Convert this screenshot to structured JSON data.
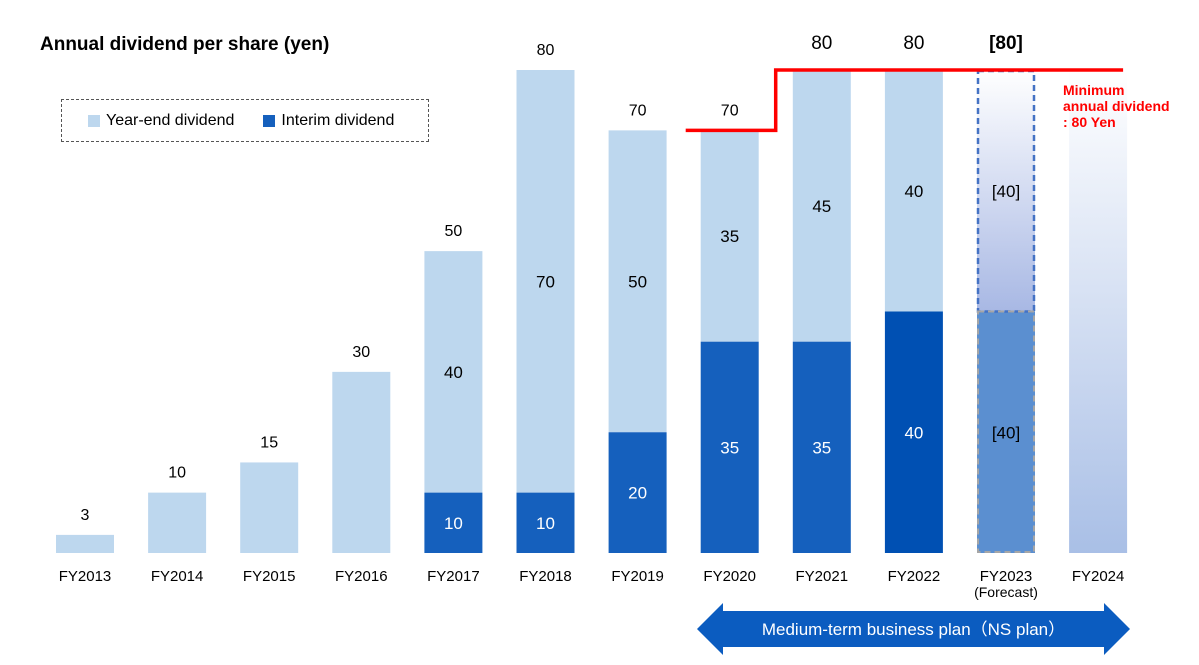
{
  "title": "Annual dividend per share (yen)",
  "legend": {
    "year_end": "Year-end dividend",
    "interim": "Interim dividend"
  },
  "colors": {
    "year_end": "#bdd7ee",
    "interim": "#1560bd",
    "interim_dark": "#0050b3",
    "forecast_interim": "#5b8fd0",
    "minimum_line": "#ff0000",
    "plan_arrow": "#0b5cc0"
  },
  "minimum_note": "Minimum annual dividend : 80 Yen",
  "plan_label": "Medium-term business plan（NS plan）",
  "chart_data": {
    "type": "bar",
    "stacked": true,
    "categories": [
      "FY2013",
      "FY2014",
      "FY2015",
      "FY2016",
      "FY2017",
      "FY2018",
      "FY2019",
      "FY2020",
      "FY2021",
      "FY2022",
      "FY2023",
      "FY2024"
    ],
    "category_sublabels": [
      "",
      "",
      "",
      "",
      "",
      "",
      "",
      "",
      "",
      "",
      "(Forecast)",
      ""
    ],
    "series": [
      {
        "name": "Interim dividend",
        "values": [
          0,
          0,
          0,
          0,
          10,
          10,
          20,
          35,
          35,
          40,
          40,
          null
        ],
        "labels": [
          "",
          "",
          "",
          "",
          "10",
          "10",
          "20",
          "35",
          "35",
          "40",
          "[40]",
          ""
        ]
      },
      {
        "name": "Year-end dividend",
        "values": [
          3,
          10,
          15,
          30,
          40,
          70,
          50,
          35,
          45,
          40,
          40,
          null
        ],
        "labels": [
          "",
          "",
          "",
          "",
          "40",
          "70",
          "50",
          "35",
          "45",
          "40",
          "[40]",
          ""
        ]
      }
    ],
    "totals": [
      3,
      10,
      15,
      30,
      50,
      80,
      70,
      70,
      80,
      80,
      80,
      null
    ],
    "total_labels": [
      "3",
      "10",
      "15",
      "30",
      "50",
      "80",
      "70",
      "70",
      "80",
      "80",
      "[80]",
      ""
    ],
    "minimum_annual_dividend": 80,
    "ylim": [
      0,
      80
    ],
    "grid": false,
    "legend_position": "top-left"
  }
}
